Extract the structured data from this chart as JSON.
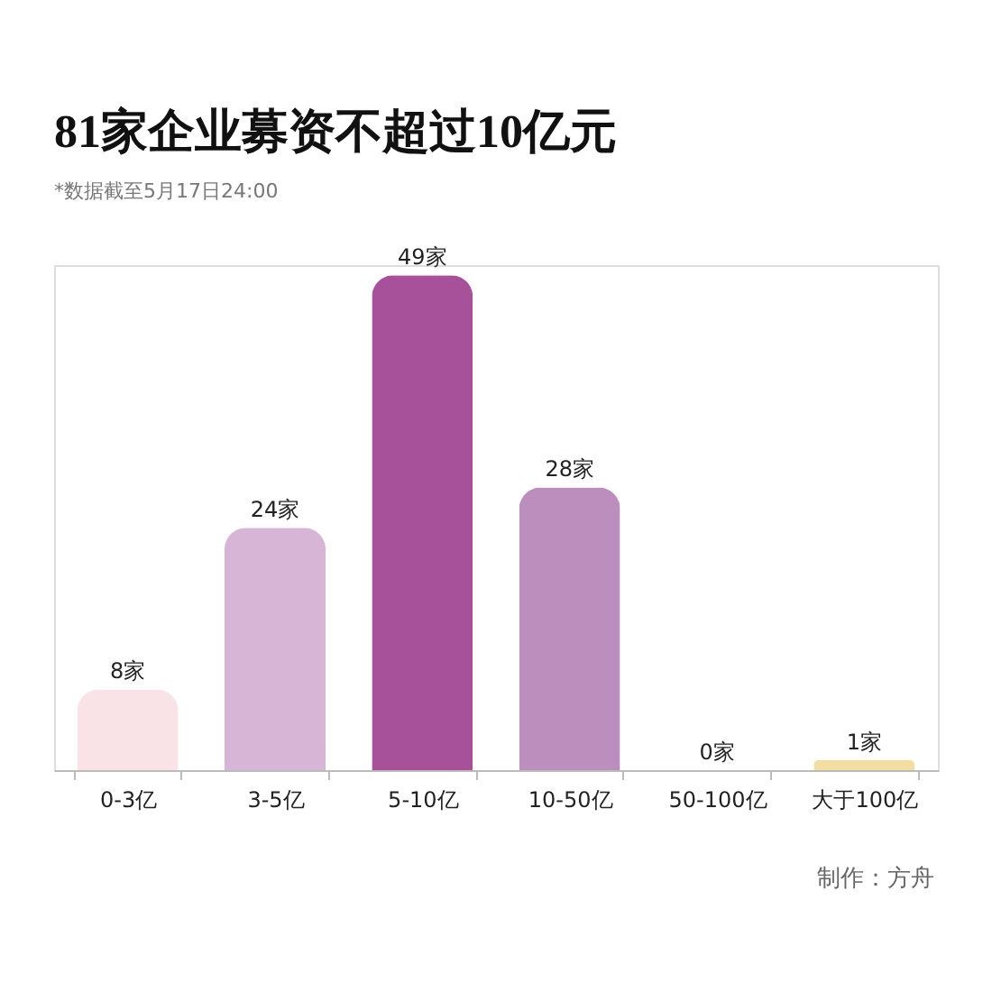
{
  "chart_data": {
    "type": "bar",
    "title": "81家企业募资不超过10亿元",
    "subtitle": "*数据截至5月17日24:00",
    "categories": [
      "0-3亿",
      "3-5亿",
      "5-10亿",
      "10-50亿",
      "50-100亿",
      "大于100亿"
    ],
    "values": [
      8,
      24,
      49,
      28,
      0,
      1
    ],
    "colors": [
      "#f9e3e7",
      "#d6b5d7",
      "#a8519b",
      "#bc8ebe",
      "#e6e6e6",
      "#f2dea0"
    ],
    "value_labels": [
      "8家",
      "24家",
      "49家",
      "28家",
      "0家",
      "1家"
    ],
    "annotations": [
      "制作：方舟"
    ],
    "grid": false
  }
}
